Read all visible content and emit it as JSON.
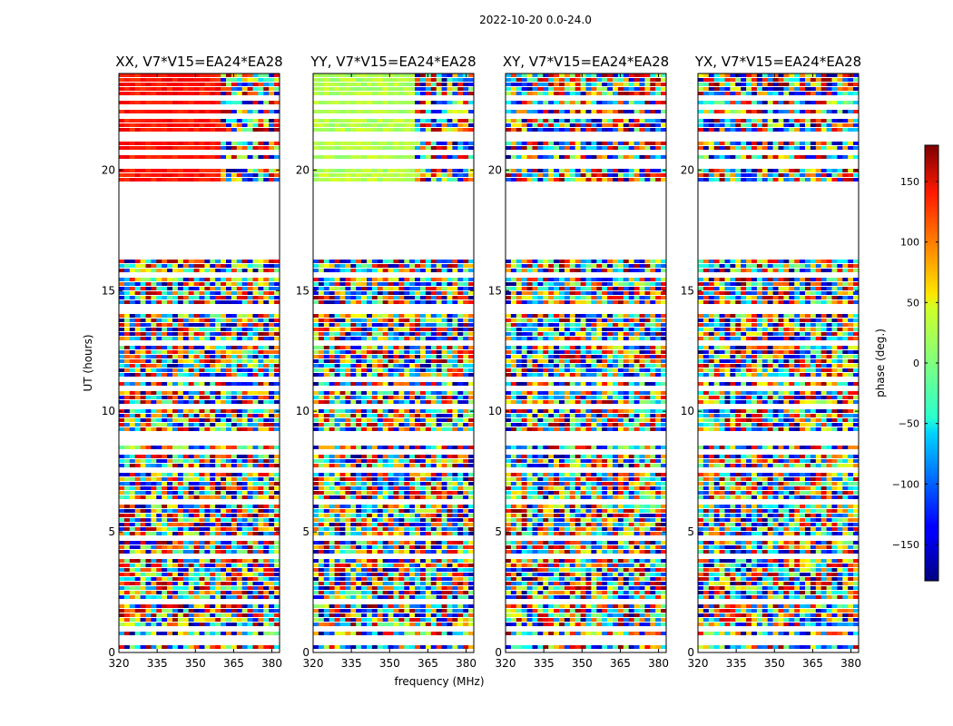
{
  "figure_title": "2022-10-20 0.0-24.0",
  "chart_data": {
    "type": "heatmap",
    "suptitle": "2022-10-20 0.0-24.0",
    "xlabel": "frequency (MHz)",
    "ylabel": "UT (hours)",
    "xlim": [
      320,
      383
    ],
    "ylim": [
      0,
      24
    ],
    "xticks": [
      320,
      335,
      350,
      365,
      380
    ],
    "yticks": [
      0,
      5,
      10,
      15,
      20
    ],
    "panels": [
      {
        "title": "XX, V7*V15=EA24*EA28"
      },
      {
        "title": "YY, V7*V15=EA24*EA28"
      },
      {
        "title": "XY, V7*V15=EA24*EA28"
      },
      {
        "title": "YX, V7*V15=EA24*EA28"
      }
    ],
    "colorbar": {
      "label": "phase (deg.)",
      "colormap": "jet",
      "range": [
        -180,
        180
      ],
      "ticks": [
        150,
        100,
        50,
        0,
        -50,
        -100,
        -150
      ],
      "tick_labels": [
        "150",
        "100",
        "50",
        "0",
        "−50",
        "−100",
        "−150"
      ]
    },
    "data_gaps_ut_hours": [
      [
        16.2,
        19.3
      ],
      [
        21.2,
        21.6
      ],
      [
        22.2,
        22.4
      ],
      [
        22.8,
        23.0
      ]
    ]
  }
}
